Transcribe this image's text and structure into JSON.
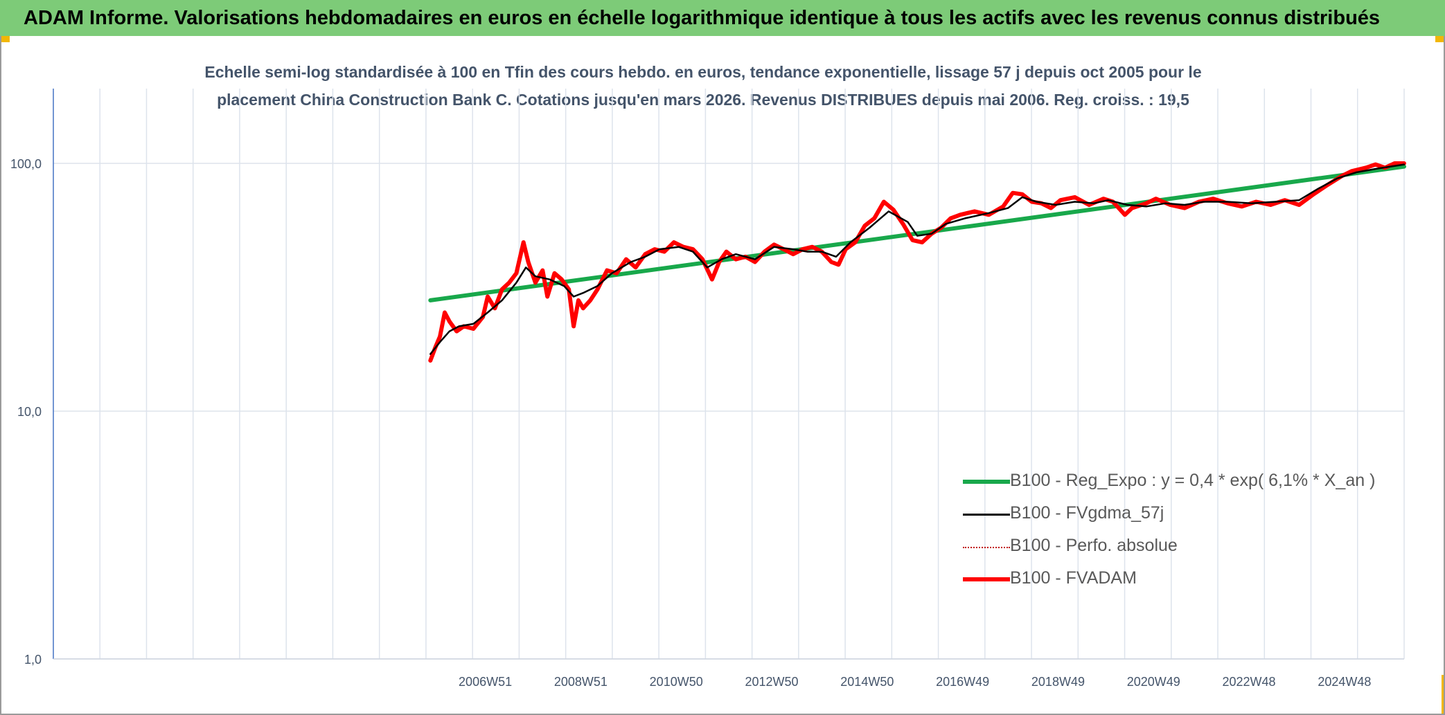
{
  "banner": {
    "title": "ADAM Informe. Valorisations hebdomadaires en euros en échelle logarithmique identique à tous les actifs avec les revenus connus distribués"
  },
  "chart_data": {
    "type": "line",
    "title_line1": "Echelle semi-log standardisée à 100 en Tfin des cours hebdo. en euros, tendance exponentielle, lissage 57 j depuis oct 2005 pour le",
    "title_line2": "placement China Construction Bank C. Cotations jusqu'en mars 2026. Revenus DISTRIBUES depuis mai 2006. Reg. croiss. : 19,5",
    "y_scale": "log",
    "ylim": [
      1,
      200
    ],
    "y_ticks": [
      {
        "value": 1,
        "label": "1,0"
      },
      {
        "value": 10,
        "label": "10,0"
      },
      {
        "value": 100,
        "label": "100,0"
      }
    ],
    "x_start_year": 1997.9,
    "x_end_year": 2026.2,
    "x_ticks": [
      {
        "year": 2006.95,
        "label": "2006W51"
      },
      {
        "year": 2008.95,
        "label": "2008W51"
      },
      {
        "year": 2010.95,
        "label": "2010W50"
      },
      {
        "year": 2012.95,
        "label": "2012W50"
      },
      {
        "year": 2014.95,
        "label": "2014W50"
      },
      {
        "year": 2016.95,
        "label": "2016W49"
      },
      {
        "year": 2018.95,
        "label": "2018W49"
      },
      {
        "year": 2020.95,
        "label": "2020W49"
      },
      {
        "year": 2022.95,
        "label": "2022W48"
      },
      {
        "year": 2024.95,
        "label": "2024W48"
      }
    ],
    "grid": true,
    "legend_position": "bottom-right",
    "series": [
      {
        "name": "B100 - Reg_Expo : y = 0,4 * exp( 6,1% *  X_an )",
        "color": "#18a84b",
        "style": "thick",
        "points": [
          [
            2005.8,
            28
          ],
          [
            2026.2,
            97
          ]
        ]
      },
      {
        "name": "B100 - FVgdma_57j",
        "color": "#000000",
        "style": "thin",
        "points": [
          [
            2005.8,
            17
          ],
          [
            2006.0,
            19
          ],
          [
            2006.2,
            21
          ],
          [
            2006.4,
            22
          ],
          [
            2006.7,
            22.5
          ],
          [
            2007.0,
            25
          ],
          [
            2007.3,
            28
          ],
          [
            2007.6,
            33
          ],
          [
            2007.8,
            38
          ],
          [
            2008.0,
            35
          ],
          [
            2008.3,
            34
          ],
          [
            2008.6,
            32
          ],
          [
            2008.8,
            29
          ],
          [
            2009.0,
            30
          ],
          [
            2009.3,
            32
          ],
          [
            2009.6,
            36
          ],
          [
            2010.0,
            40
          ],
          [
            2010.3,
            42
          ],
          [
            2010.6,
            45
          ],
          [
            2011.0,
            46
          ],
          [
            2011.3,
            44
          ],
          [
            2011.6,
            38
          ],
          [
            2011.9,
            41
          ],
          [
            2012.2,
            43
          ],
          [
            2012.6,
            41
          ],
          [
            2013.0,
            46
          ],
          [
            2013.4,
            45
          ],
          [
            2013.7,
            44
          ],
          [
            2014.0,
            44
          ],
          [
            2014.3,
            42
          ],
          [
            2014.6,
            48
          ],
          [
            2015.0,
            55
          ],
          [
            2015.4,
            64
          ],
          [
            2015.8,
            58
          ],
          [
            2016.0,
            51
          ],
          [
            2016.3,
            52
          ],
          [
            2016.6,
            57
          ],
          [
            2017.0,
            60
          ],
          [
            2017.5,
            63
          ],
          [
            2017.9,
            66
          ],
          [
            2018.2,
            73
          ],
          [
            2018.5,
            70
          ],
          [
            2018.9,
            68
          ],
          [
            2019.3,
            70
          ],
          [
            2019.7,
            69
          ],
          [
            2020.0,
            71
          ],
          [
            2020.4,
            68
          ],
          [
            2020.8,
            67
          ],
          [
            2021.2,
            69
          ],
          [
            2021.6,
            68
          ],
          [
            2022.0,
            70
          ],
          [
            2022.5,
            70
          ],
          [
            2023.0,
            69
          ],
          [
            2023.5,
            70
          ],
          [
            2024.0,
            71
          ],
          [
            2024.4,
            79
          ],
          [
            2024.8,
            87
          ],
          [
            2025.2,
            92
          ],
          [
            2025.6,
            95
          ],
          [
            2026.2,
            99
          ]
        ]
      },
      {
        "name": "B100 - Perfo. absolue",
        "color": "#c00000",
        "style": "dotted",
        "points": []
      },
      {
        "name": "B100 - FVADAM",
        "color": "#ff0000",
        "style": "thick",
        "points": [
          [
            2005.8,
            16
          ],
          [
            2005.9,
            18
          ],
          [
            2006.0,
            20
          ],
          [
            2006.1,
            25
          ],
          [
            2006.2,
            23
          ],
          [
            2006.35,
            21
          ],
          [
            2006.5,
            22
          ],
          [
            2006.7,
            21.5
          ],
          [
            2006.9,
            24
          ],
          [
            2007.0,
            29
          ],
          [
            2007.15,
            26
          ],
          [
            2007.3,
            31
          ],
          [
            2007.45,
            33
          ],
          [
            2007.6,
            36
          ],
          [
            2007.75,
            48
          ],
          [
            2007.85,
            40
          ],
          [
            2008.0,
            33
          ],
          [
            2008.15,
            37
          ],
          [
            2008.25,
            29
          ],
          [
            2008.4,
            36
          ],
          [
            2008.55,
            34
          ],
          [
            2008.7,
            31
          ],
          [
            2008.8,
            22
          ],
          [
            2008.9,
            28
          ],
          [
            2009.0,
            26
          ],
          [
            2009.15,
            28
          ],
          [
            2009.3,
            31
          ],
          [
            2009.5,
            37
          ],
          [
            2009.7,
            36
          ],
          [
            2009.9,
            41
          ],
          [
            2010.1,
            38
          ],
          [
            2010.3,
            43
          ],
          [
            2010.5,
            45
          ],
          [
            2010.7,
            44
          ],
          [
            2010.9,
            48
          ],
          [
            2011.1,
            46
          ],
          [
            2011.3,
            45
          ],
          [
            2011.5,
            41
          ],
          [
            2011.7,
            34
          ],
          [
            2011.85,
            40
          ],
          [
            2012.0,
            44
          ],
          [
            2012.2,
            41
          ],
          [
            2012.4,
            42
          ],
          [
            2012.6,
            40
          ],
          [
            2012.8,
            44
          ],
          [
            2013.0,
            47
          ],
          [
            2013.2,
            45
          ],
          [
            2013.4,
            43
          ],
          [
            2013.6,
            45
          ],
          [
            2013.8,
            46
          ],
          [
            2014.0,
            44
          ],
          [
            2014.2,
            40
          ],
          [
            2014.35,
            39
          ],
          [
            2014.5,
            45
          ],
          [
            2014.7,
            48
          ],
          [
            2014.9,
            56
          ],
          [
            2015.1,
            60
          ],
          [
            2015.3,
            70
          ],
          [
            2015.5,
            65
          ],
          [
            2015.7,
            57
          ],
          [
            2015.9,
            49
          ],
          [
            2016.1,
            48
          ],
          [
            2016.3,
            52
          ],
          [
            2016.5,
            55
          ],
          [
            2016.7,
            60
          ],
          [
            2016.9,
            62
          ],
          [
            2017.2,
            64
          ],
          [
            2017.5,
            62
          ],
          [
            2017.8,
            67
          ],
          [
            2018.0,
            76
          ],
          [
            2018.2,
            75
          ],
          [
            2018.4,
            70
          ],
          [
            2018.6,
            69
          ],
          [
            2018.8,
            66
          ],
          [
            2019.0,
            71
          ],
          [
            2019.3,
            73
          ],
          [
            2019.6,
            68
          ],
          [
            2019.9,
            72
          ],
          [
            2020.1,
            70
          ],
          [
            2020.35,
            62
          ],
          [
            2020.5,
            66
          ],
          [
            2020.8,
            69
          ],
          [
            2021.0,
            72
          ],
          [
            2021.3,
            68
          ],
          [
            2021.6,
            66
          ],
          [
            2021.9,
            70
          ],
          [
            2022.2,
            72
          ],
          [
            2022.5,
            69
          ],
          [
            2022.8,
            67
          ],
          [
            2023.1,
            70
          ],
          [
            2023.4,
            68
          ],
          [
            2023.7,
            71
          ],
          [
            2024.0,
            68
          ],
          [
            2024.3,
            75
          ],
          [
            2024.6,
            82
          ],
          [
            2024.9,
            89
          ],
          [
            2025.1,
            93
          ],
          [
            2025.4,
            96
          ],
          [
            2025.6,
            99
          ],
          [
            2025.8,
            96
          ],
          [
            2026.0,
            100
          ],
          [
            2026.2,
            100
          ]
        ]
      }
    ]
  }
}
